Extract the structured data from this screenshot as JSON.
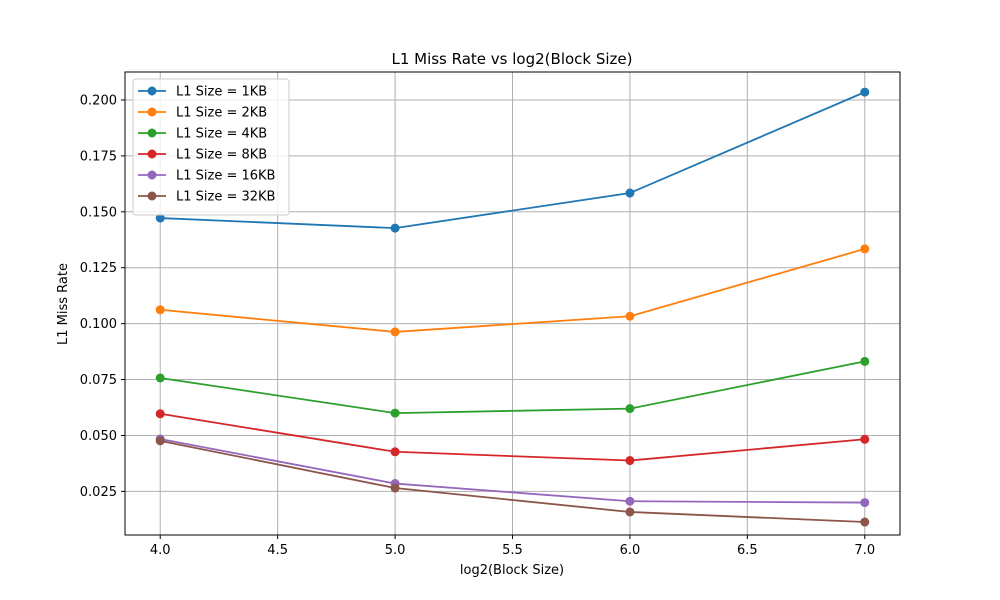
{
  "chart_data": {
    "type": "line",
    "title": "L1 Miss Rate vs log2(Block Size)",
    "xlabel": "log2(Block Size)",
    "ylabel": "L1 Miss Rate",
    "x": [
      4.0,
      5.0,
      6.0,
      7.0
    ],
    "xlim": [
      3.85,
      7.15
    ],
    "ylim": [
      0.0055,
      0.2125
    ],
    "xticks": [
      "4.0",
      "4.5",
      "5.0",
      "5.5",
      "6.0",
      "6.5",
      "7.0"
    ],
    "yticks": [
      "0.025",
      "0.050",
      "0.075",
      "0.100",
      "0.125",
      "0.150",
      "0.175",
      "0.200"
    ],
    "grid": true,
    "legend_position": "top-left",
    "marker": "circle",
    "series": [
      {
        "name": "L1 Size = 1KB",
        "color": "#1f77b4",
        "values": [
          0.1472,
          0.1427,
          0.1584,
          0.2035
        ]
      },
      {
        "name": "L1 Size = 2KB",
        "color": "#ff7f0e",
        "values": [
          0.1062,
          0.0963,
          0.1033,
          0.1334
        ]
      },
      {
        "name": "L1 Size = 4KB",
        "color": "#2ca02c",
        "values": [
          0.0757,
          0.06,
          0.062,
          0.0831
        ]
      },
      {
        "name": "L1 Size = 8KB",
        "color": "#d62728",
        "values": [
          0.0597,
          0.0427,
          0.0388,
          0.0483
        ]
      },
      {
        "name": "L1 Size = 16KB",
        "color": "#9467bd",
        "values": [
          0.0484,
          0.0285,
          0.0206,
          0.02
        ]
      },
      {
        "name": "L1 Size = 32KB",
        "color": "#8c564b",
        "values": [
          0.0476,
          0.0265,
          0.0158,
          0.0113
        ]
      }
    ]
  }
}
